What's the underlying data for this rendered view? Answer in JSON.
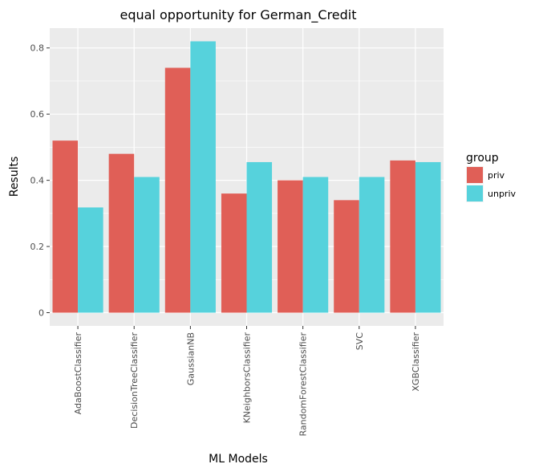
{
  "chart_data": {
    "type": "bar",
    "title": "equal opportunity for German_Credit",
    "xlabel": "ML Models",
    "ylabel": "Results",
    "categories": [
      "AdaBoostClassifier",
      "DecisionTreeClassifier",
      "GaussianNB",
      "KNeighborsClassifier",
      "RandomForestClassifier",
      "SVC",
      "XGBClassifier"
    ],
    "series": [
      {
        "name": "priv",
        "color": "#e05f57",
        "values": [
          0.52,
          0.48,
          0.74,
          0.36,
          0.4,
          0.34,
          0.46
        ]
      },
      {
        "name": "unpriv",
        "color": "#56d2dc",
        "values": [
          0.318,
          0.41,
          0.82,
          0.455,
          0.41,
          0.41,
          0.455
        ]
      }
    ],
    "ylim": [
      -0.04,
      0.86
    ],
    "yticks": [
      0,
      0.2,
      0.4,
      0.6,
      0.8
    ],
    "ytick_labels": [
      "0",
      "0.2",
      "0.4",
      "0.6",
      "0.8"
    ],
    "grid": true,
    "legend_title": "group",
    "legend_position": "right"
  }
}
